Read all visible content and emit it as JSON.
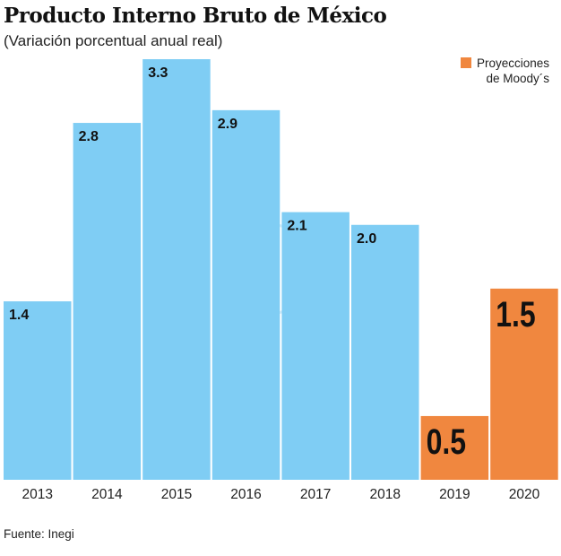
{
  "title": "Producto Interno Bruto de México",
  "subtitle": "(Variación porcentual anual real)",
  "source": "Fuente: Inegi",
  "legend": {
    "label_line1": "Proyecciones",
    "label_line2": "de Moody´s",
    "color": "#f0873f"
  },
  "chart_data": {
    "type": "bar",
    "title": "Producto Interno Bruto de México",
    "subtitle": "(Variación porcentual anual real)",
    "categories": [
      "2013",
      "2014",
      "2015",
      "2016",
      "2017",
      "2018",
      "2019",
      "2020"
    ],
    "values": [
      1.4,
      2.8,
      3.3,
      2.9,
      2.1,
      2.0,
      0.5,
      1.5
    ],
    "labels": [
      "1.4",
      "2.8",
      "3.3",
      "2.9",
      "2.1",
      "2.0",
      "0.5",
      "1.5"
    ],
    "projected": [
      false,
      false,
      false,
      false,
      false,
      false,
      true,
      true
    ],
    "colors": {
      "actual": "#7fcdf4",
      "projection": "#f0873f"
    },
    "ylim": [
      0,
      3.3
    ],
    "grid": false,
    "legend_position": "top-right"
  }
}
